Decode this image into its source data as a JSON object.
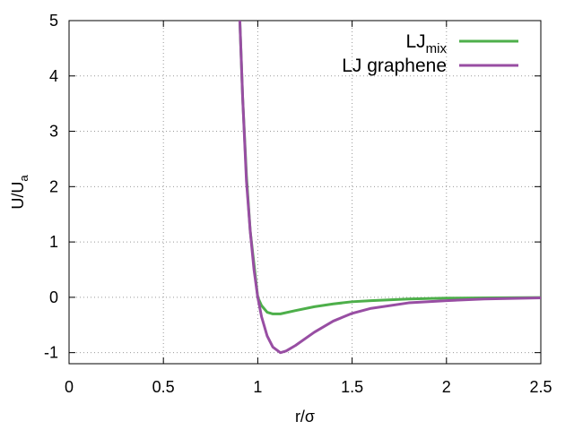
{
  "chart_data": {
    "type": "line",
    "title": "",
    "xlabel": "r/σ",
    "ylabel": {
      "base": "U/U",
      "sub": "a"
    },
    "xlim": [
      0,
      2.5
    ],
    "ylim": [
      -1.2,
      5
    ],
    "x_ticks": [
      0,
      0.5,
      1,
      1.5,
      2,
      2.5
    ],
    "x_tick_labels": [
      "0",
      "0.5",
      "1",
      "1.5",
      "2",
      "2.5"
    ],
    "y_ticks": [
      -1,
      0,
      1,
      2,
      3,
      4,
      5
    ],
    "y_tick_labels": [
      "-1",
      "0",
      "1",
      "2",
      "3",
      "4",
      "5"
    ],
    "grid": true,
    "legend_position": "top-right",
    "series": [
      {
        "name": "LJ",
        "name_sub": "mix",
        "color": "#4daf4a",
        "points": [
          [
            0.905,
            5.0
          ],
          [
            0.92,
            3.6
          ],
          [
            0.94,
            2.2
          ],
          [
            0.96,
            1.2
          ],
          [
            0.98,
            0.6
          ],
          [
            1.0,
            0.0
          ],
          [
            1.02,
            -0.15
          ],
          [
            1.05,
            -0.27
          ],
          [
            1.08,
            -0.3
          ],
          [
            1.12,
            -0.3
          ],
          [
            1.2,
            -0.24
          ],
          [
            1.3,
            -0.17
          ],
          [
            1.4,
            -0.12
          ],
          [
            1.5,
            -0.08
          ],
          [
            1.6,
            -0.06
          ],
          [
            1.8,
            -0.03
          ],
          [
            2.0,
            -0.015
          ],
          [
            2.2,
            -0.01
          ],
          [
            2.5,
            -0.005
          ]
        ]
      },
      {
        "name": "LJ graphene",
        "name_sub": "",
        "color": "#984ea3",
        "points": [
          [
            0.905,
            5.0
          ],
          [
            0.92,
            3.6
          ],
          [
            0.94,
            2.1
          ],
          [
            0.96,
            1.2
          ],
          [
            0.98,
            0.5
          ],
          [
            1.0,
            0.0
          ],
          [
            1.02,
            -0.35
          ],
          [
            1.05,
            -0.7
          ],
          [
            1.08,
            -0.9
          ],
          [
            1.12,
            -1.0
          ],
          [
            1.15,
            -0.97
          ],
          [
            1.2,
            -0.87
          ],
          [
            1.3,
            -0.63
          ],
          [
            1.4,
            -0.43
          ],
          [
            1.5,
            -0.29
          ],
          [
            1.6,
            -0.2
          ],
          [
            1.8,
            -0.1
          ],
          [
            2.0,
            -0.06
          ],
          [
            2.2,
            -0.03
          ],
          [
            2.5,
            -0.01
          ]
        ]
      }
    ]
  }
}
